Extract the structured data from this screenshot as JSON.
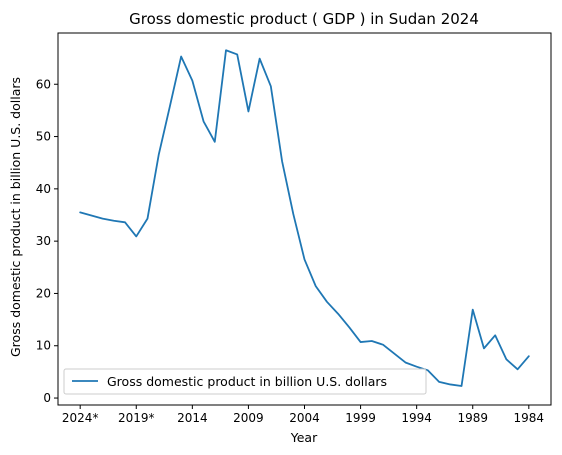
{
  "chart_data": {
    "type": "line",
    "title": "Gross domestic product ( GDP ) in Sudan 2024",
    "xlabel": "Year",
    "ylabel": "Gross domestic product in billion U.S. dollars",
    "x_order": "descending",
    "x": [
      "2024*",
      "2023*",
      "2022*",
      "2021*",
      "2020*",
      "2019*",
      "2018",
      "2017",
      "2016",
      "2015",
      "2014",
      "2013",
      "2012",
      "2011",
      "2010",
      "2009",
      "2008",
      "2007",
      "2006",
      "2005",
      "2004",
      "2003",
      "2002",
      "2001",
      "2000",
      "1999",
      "1998",
      "1997",
      "1996",
      "1995",
      "1994",
      "1993",
      "1992",
      "1991",
      "1990",
      "1989",
      "1988",
      "1987",
      "1986",
      "1985",
      "1984"
    ],
    "x_tick_labels": [
      "2024*",
      "2019*",
      "2014",
      "2009",
      "2004",
      "1999",
      "1994",
      "1989",
      "1984"
    ],
    "series": [
      {
        "name": "Gross domestic product in billion U.S. dollars",
        "color": "#1f77b4",
        "values": [
          35.5,
          34.9,
          34.3,
          33.9,
          33.6,
          30.9,
          34.3,
          46.5,
          55.8,
          65.3,
          60.7,
          52.9,
          49.0,
          66.5,
          65.7,
          54.8,
          64.9,
          59.6,
          45.3,
          35.2,
          26.5,
          21.4,
          18.4,
          16.1,
          13.5,
          10.7,
          10.9,
          10.2,
          8.5,
          6.8,
          6.0,
          5.3,
          3.1,
          2.6,
          2.3,
          16.9,
          9.5,
          12.0,
          7.4,
          5.5,
          8.0
        ]
      }
    ],
    "ylim": [
      -1.33,
      69.8
    ],
    "yticks": [
      0,
      10,
      20,
      30,
      40,
      50,
      60
    ],
    "grid": false,
    "legend_position": "lower-left"
  }
}
